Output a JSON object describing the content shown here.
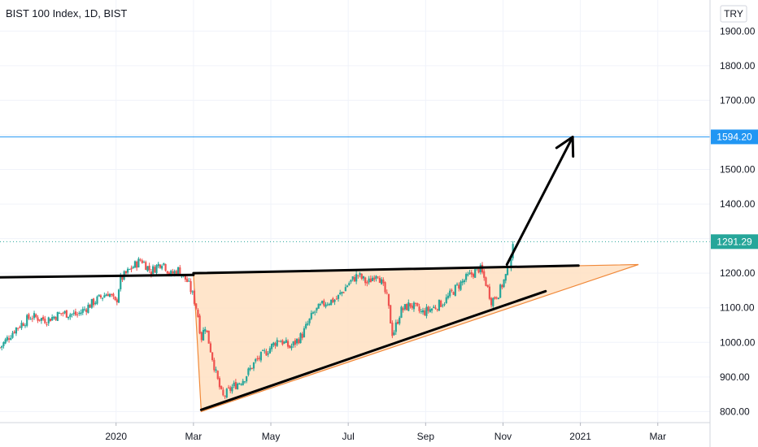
{
  "chart_data": {
    "type": "candlestick",
    "title": "BIST 100 Index, 1D, BIST",
    "currency": "TRY",
    "y_ticks": [
      800,
      900,
      1000,
      1100,
      1200,
      1300,
      1400,
      1500,
      1600,
      1700,
      1800,
      1900
    ],
    "y_tick_labels": [
      "800.00",
      "900.00",
      "1000.00",
      "1100.00",
      "1200.00",
      "",
      "1400.00",
      "1500.00",
      "",
      "1700.00",
      "1800.00",
      "1900.00"
    ],
    "ylim": [
      768,
      1990
    ],
    "x_tick_labels": [
      "2020",
      "Mar",
      "May",
      "Jul",
      "Sep",
      "Nov",
      "2021",
      "Mar"
    ],
    "x_tick_months": [
      12,
      14,
      16,
      18,
      20,
      22,
      24,
      26
    ],
    "xlim_months": [
      9.0,
      27.35
    ],
    "target_line": {
      "value": 1594.2,
      "label": "1594.20",
      "color": "#2196f3"
    },
    "last_price": {
      "value": 1291.29,
      "label": "1291.29",
      "color": "#26a69a"
    },
    "colors": {
      "up": "#26a69a",
      "down": "#ef5350",
      "triangle_fill": "#ffe0c2",
      "triangle_edge": "#f0893a",
      "drawing": "#000000",
      "grid": "#f0f3fa"
    },
    "key_points": [
      {
        "month": 9.0,
        "price": 985
      },
      {
        "month": 9.4,
        "price": 1040
      },
      {
        "month": 9.8,
        "price": 1075
      },
      {
        "month": 10.2,
        "price": 1065
      },
      {
        "month": 10.6,
        "price": 1085
      },
      {
        "month": 11.0,
        "price": 1080
      },
      {
        "month": 11.4,
        "price": 1115
      },
      {
        "month": 11.8,
        "price": 1145
      },
      {
        "month": 12.0,
        "price": 1110
      },
      {
        "month": 12.1,
        "price": 1180
      },
      {
        "month": 12.4,
        "price": 1215
      },
      {
        "month": 12.65,
        "price": 1240
      },
      {
        "month": 12.9,
        "price": 1205
      },
      {
        "month": 13.2,
        "price": 1235
      },
      {
        "month": 13.4,
        "price": 1195
      },
      {
        "month": 13.6,
        "price": 1210
      },
      {
        "month": 13.85,
        "price": 1175
      },
      {
        "month": 14.0,
        "price": 1130
      },
      {
        "month": 14.1,
        "price": 1090
      },
      {
        "month": 14.2,
        "price": 1010
      },
      {
        "month": 14.3,
        "price": 1050
      },
      {
        "month": 14.45,
        "price": 975
      },
      {
        "month": 14.6,
        "price": 900
      },
      {
        "month": 14.75,
        "price": 840
      },
      {
        "month": 15.0,
        "price": 870
      },
      {
        "month": 15.3,
        "price": 895
      },
      {
        "month": 15.6,
        "price": 945
      },
      {
        "month": 15.9,
        "price": 975
      },
      {
        "month": 16.2,
        "price": 1010
      },
      {
        "month": 16.5,
        "price": 985
      },
      {
        "month": 16.8,
        "price": 1020
      },
      {
        "month": 17.1,
        "price": 1085
      },
      {
        "month": 17.4,
        "price": 1115
      },
      {
        "month": 17.7,
        "price": 1125
      },
      {
        "month": 18.0,
        "price": 1170
      },
      {
        "month": 18.25,
        "price": 1195
      },
      {
        "month": 18.5,
        "price": 1170
      },
      {
        "month": 18.75,
        "price": 1205
      },
      {
        "month": 19.0,
        "price": 1130
      },
      {
        "month": 19.15,
        "price": 1020
      },
      {
        "month": 19.35,
        "price": 1090
      },
      {
        "month": 19.6,
        "price": 1110
      },
      {
        "month": 19.9,
        "price": 1085
      },
      {
        "month": 20.2,
        "price": 1100
      },
      {
        "month": 20.5,
        "price": 1120
      },
      {
        "month": 20.8,
        "price": 1160
      },
      {
        "month": 21.1,
        "price": 1190
      },
      {
        "month": 21.4,
        "price": 1215
      },
      {
        "month": 21.55,
        "price": 1175
      },
      {
        "month": 21.7,
        "price": 1120
      },
      {
        "month": 21.9,
        "price": 1145
      },
      {
        "month": 22.1,
        "price": 1200
      },
      {
        "month": 22.3,
        "price": 1291
      }
    ],
    "drawings": {
      "triangle": [
        {
          "month": 14.0,
          "price": 1200
        },
        {
          "month": 14.2,
          "price": 800
        },
        {
          "month": 25.5,
          "price": 1225
        }
      ],
      "upper_trendline": [
        {
          "month": 14.0,
          "price": 1200
        },
        {
          "month": 23.95,
          "price": 1222
        }
      ],
      "lower_trendline": [
        {
          "month": 14.2,
          "price": 805
        },
        {
          "month": 23.1,
          "price": 1148
        }
      ],
      "prior_resistance": [
        {
          "month": 8.9,
          "price": 1188
        },
        {
          "month": 14.0,
          "price": 1195
        }
      ],
      "projection_arrow": [
        {
          "month": 22.1,
          "price": 1225
        },
        {
          "month": 23.8,
          "price": 1594
        }
      ]
    }
  }
}
